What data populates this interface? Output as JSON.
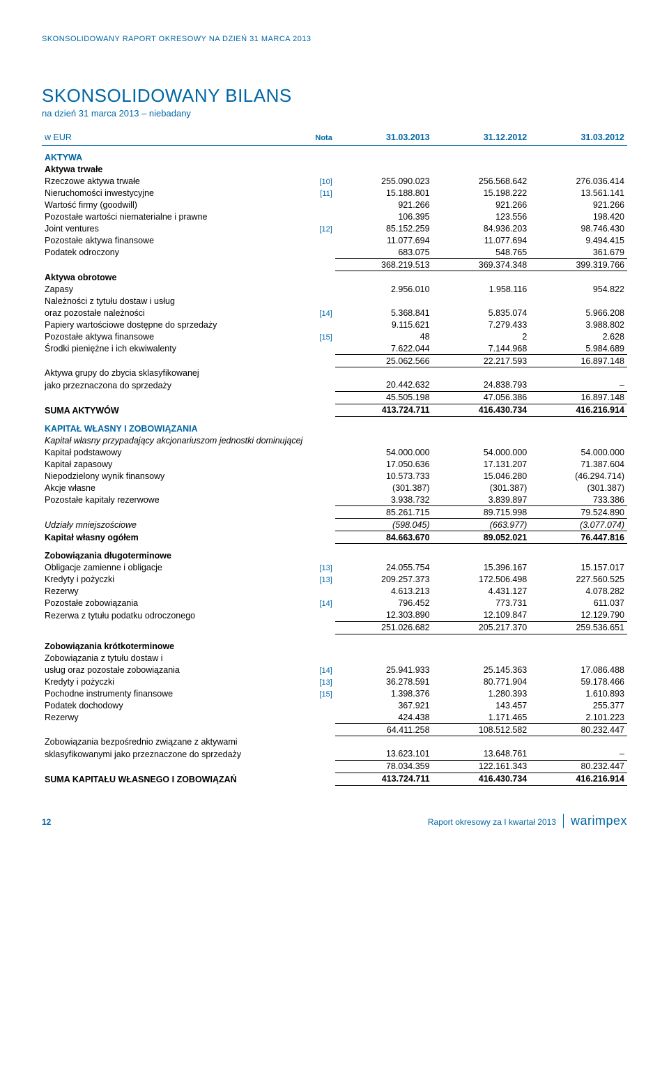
{
  "colors": {
    "accent": "#0066a4",
    "text": "#000000",
    "background": "#ffffff"
  },
  "headerLine": "SKONSOLIDOWANY RAPORT OKRESOWY NA DZIEŃ 31 MARCA 2013",
  "title": "SKONSOLIDOWANY BILANS",
  "subtitle": "na dzień 31 marca 2013 – niebadany",
  "columns": {
    "label": "w EUR",
    "note": "Nota",
    "c1": "31.03.2013",
    "c2": "31.12.2012",
    "c3": "31.03.2012"
  },
  "sections": [
    {
      "heading": "AKTYWA",
      "subheading": "Aktywa trwałe",
      "rows": [
        {
          "label": "Rzeczowe aktywa trwałe",
          "note": "[10]",
          "v1": "255.090.023",
          "v2": "256.568.642",
          "v3": "276.036.414"
        },
        {
          "label": "Nieruchomości inwestycyjne",
          "note": "[11]",
          "v1": "15.188.801",
          "v2": "15.198.222",
          "v3": "13.561.141"
        },
        {
          "label": "Wartość firmy (goodwill)",
          "note": "",
          "v1": "921.266",
          "v2": "921.266",
          "v3": "921.266"
        },
        {
          "label": "Pozostałe wartości niematerialne i prawne",
          "note": "",
          "v1": "106.395",
          "v2": "123.556",
          "v3": "198.420"
        },
        {
          "label": "Joint ventures",
          "note": "[12]",
          "v1": "85.152.259",
          "v2": "84.936.203",
          "v3": "98.746.430"
        },
        {
          "label": "Pozostałe aktywa finansowe",
          "note": "",
          "v1": "11.077.694",
          "v2": "11.077.694",
          "v3": "9.494.415"
        },
        {
          "label": "Podatek odroczony",
          "note": "",
          "v1": "683.075",
          "v2": "548.765",
          "v3": "361.679"
        },
        {
          "subtotal": true,
          "label": "",
          "note": "",
          "v1": "368.219.513",
          "v2": "369.374.348",
          "v3": "399.319.766"
        }
      ]
    },
    {
      "subheading": "Aktywa obrotowe",
      "rows": [
        {
          "label": "Zapasy",
          "note": "",
          "v1": "2.956.010",
          "v2": "1.958.116",
          "v3": "954.822"
        },
        {
          "label2a": "Należności z tytułu dostaw i usług",
          "label2b": "oraz pozostałe należności",
          "note": "[14]",
          "v1": "5.368.841",
          "v2": "5.835.074",
          "v3": "5.966.208"
        },
        {
          "label": "Papiery wartościowe dostępne do sprzedaży",
          "note": "",
          "v1": "9.115.621",
          "v2": "7.279.433",
          "v3": "3.988.802"
        },
        {
          "label": "Pozostałe aktywa finansowe",
          "note": "[15]",
          "v1": "48",
          "v2": "2",
          "v3": "2.628"
        },
        {
          "label": "Środki pieniężne i ich ekwiwalenty",
          "note": "",
          "v1": "7.622.044",
          "v2": "7.144.968",
          "v3": "5.984.689"
        },
        {
          "subtotal": true,
          "label": "",
          "note": "",
          "v1": "25.062.566",
          "v2": "22.217.593",
          "v3": "16.897.148"
        },
        {
          "label2a": "Aktywa grupy do zbycia sklasyfikowanej",
          "label2b": "jako przeznaczona do sprzedaży",
          "note": "",
          "v1": "20.442.632",
          "v2": "24.838.793",
          "v3": "–"
        },
        {
          "subtotal": true,
          "label": "",
          "note": "",
          "v1": "45.505.198",
          "v2": "47.056.386",
          "v3": "16.897.148"
        },
        {
          "grand": true,
          "label": "SUMA AKTYWÓW",
          "note": "",
          "v1": "413.724.711",
          "v2": "416.430.734",
          "v3": "416.216.914"
        }
      ]
    },
    {
      "heading": "KAPITAŁ WŁASNY I ZOBOWIĄZANIA",
      "subheading_italic": "Kapitał własny przypadający akcjonariuszom jednostki dominującej",
      "rows": [
        {
          "label": "Kapitał podstawowy",
          "note": "",
          "v1": "54.000.000",
          "v2": "54.000.000",
          "v3": "54.000.000"
        },
        {
          "label": "Kapitał zapasowy",
          "note": "",
          "v1": "17.050.636",
          "v2": "17.131.207",
          "v3": "71.387.604"
        },
        {
          "label": "Niepodzielony wynik finansowy",
          "note": "",
          "v1": "10.573.733",
          "v2": "15.046.280",
          "v3": "(46.294.714)"
        },
        {
          "label": "Akcje własne",
          "note": "",
          "v1": "(301.387)",
          "v2": "(301.387)",
          "v3": "(301.387)"
        },
        {
          "label": "Pozostałe kapitały rezerwowe",
          "note": "",
          "v1": "3.938.732",
          "v2": "3.839.897",
          "v3": "733.386"
        },
        {
          "subtotal": true,
          "label": "",
          "note": "",
          "v1": "85.261.715",
          "v2": "89.715.998",
          "v3": "79.524.890"
        },
        {
          "italic": true,
          "label": "Udziały mniejszościowe",
          "note": "",
          "v1": "(598.045)",
          "v2": "(663.977)",
          "v3": "(3.077.074)"
        },
        {
          "grand": true,
          "bt": true,
          "label": "Kapitał własny ogółem",
          "note": "",
          "v1": "84.663.670",
          "v2": "89.052.021",
          "v3": "76.447.816"
        }
      ]
    },
    {
      "subheading_bold": "Zobowiązania długoterminowe",
      "rows": [
        {
          "label": "Obligacje zamienne i obligacje",
          "note": "[13]",
          "v1": "24.055.754",
          "v2": "15.396.167",
          "v3": "15.157.017"
        },
        {
          "label": "Kredyty i pożyczki",
          "note": "[13]",
          "v1": "209.257.373",
          "v2": "172.506.498",
          "v3": "227.560.525"
        },
        {
          "label": "Rezerwy",
          "note": "",
          "v1": "4.613.213",
          "v2": "4.431.127",
          "v3": "4.078.282"
        },
        {
          "label": "Pozostałe zobowiązania",
          "note": "[14]",
          "v1": "796.452",
          "v2": "773.731",
          "v3": "611.037"
        },
        {
          "label": "Rezerwa z tytułu podatku odroczonego",
          "note": "",
          "v1": "12.303.890",
          "v2": "12.109.847",
          "v3": "12.129.790"
        },
        {
          "subtotal": true,
          "label": "",
          "note": "",
          "v1": "251.026.682",
          "v2": "205.217.370",
          "v3": "259.536.651"
        }
      ]
    },
    {
      "subheading_bold": "Zobowiązania krótkoterminowe",
      "rows": [
        {
          "label2a": "Zobowiązania z tytułu dostaw i",
          "label2b": "usług oraz pozostałe zobowiązania",
          "note": "[14]",
          "v1": "25.941.933",
          "v2": "25.145.363",
          "v3": "17.086.488"
        },
        {
          "label": "Kredyty i pożyczki",
          "note": "[13]",
          "v1": "36.278.591",
          "v2": "80.771.904",
          "v3": "59.178.466"
        },
        {
          "label": "Pochodne instrumenty finansowe",
          "note": "[15]",
          "v1": "1.398.376",
          "v2": "1.280.393",
          "v3": "1.610.893"
        },
        {
          "label": "Podatek dochodowy",
          "note": "",
          "v1": "367.921",
          "v2": "143.457",
          "v3": "255.377"
        },
        {
          "label": "Rezerwy",
          "note": "",
          "v1": "424.438",
          "v2": "1.171.465",
          "v3": "2.101.223"
        },
        {
          "subtotal": true,
          "label": "",
          "note": "",
          "v1": "64.411.258",
          "v2": "108.512.582",
          "v3": "80.232.447"
        },
        {
          "label2a": "Zobowiązania bezpośrednio związane z aktywami",
          "label2b": "sklasyfikowanymi jako przeznaczone do sprzedaży",
          "note": "",
          "v1": "13.623.101",
          "v2": "13.648.761",
          "v3": "–"
        },
        {
          "subtotal": true,
          "label": "",
          "note": "",
          "v1": "78.034.359",
          "v2": "122.161.343",
          "v3": "80.232.447"
        },
        {
          "grand": true,
          "label": "SUMA KAPITAŁU WŁASNEGO I ZOBOWIĄZAŃ",
          "note": "",
          "v1": "413.724.711",
          "v2": "416.430.734",
          "v3": "416.216.914"
        }
      ]
    }
  ],
  "footer": {
    "pageNum": "12",
    "text": "Raport okresowy za I kwartał 2013",
    "brand": "warimpex"
  }
}
